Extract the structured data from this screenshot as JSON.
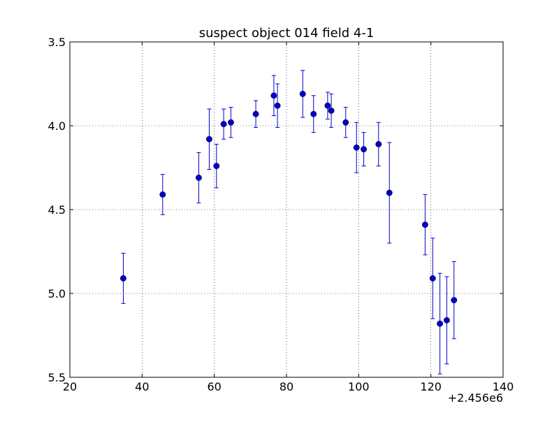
{
  "chart_data": {
    "type": "scatter",
    "title": "suspect object 014 field 4-1",
    "xlabel": "",
    "ylabel": "",
    "x_offset_label": "+2.456e6",
    "xlim": [
      20,
      140
    ],
    "ylim": [
      3.5,
      5.5
    ],
    "y_inverted": true,
    "grid": true,
    "x_ticks": [
      "20",
      "40",
      "60",
      "80",
      "100",
      "120",
      "140"
    ],
    "y_ticks": [
      "3.5",
      "4.0",
      "4.5",
      "5.0",
      "5.5"
    ],
    "marker_color": "#0000cc",
    "series": [
      {
        "points": [
          {
            "x": 34.8,
            "y": 4.91,
            "err": 0.15
          },
          {
            "x": 45.7,
            "y": 4.41,
            "err": 0.12
          },
          {
            "x": 55.7,
            "y": 4.31,
            "err": 0.15
          },
          {
            "x": 58.6,
            "y": 4.08,
            "err": 0.18
          },
          {
            "x": 60.6,
            "y": 4.24,
            "err": 0.13
          },
          {
            "x": 62.6,
            "y": 3.99,
            "err": 0.09
          },
          {
            "x": 64.6,
            "y": 3.98,
            "err": 0.09
          },
          {
            "x": 71.5,
            "y": 3.93,
            "err": 0.08
          },
          {
            "x": 76.5,
            "y": 3.82,
            "err": 0.12
          },
          {
            "x": 77.5,
            "y": 3.88,
            "err": 0.13
          },
          {
            "x": 84.5,
            "y": 3.81,
            "err": 0.14
          },
          {
            "x": 87.5,
            "y": 3.93,
            "err": 0.11
          },
          {
            "x": 91.4,
            "y": 3.88,
            "err": 0.08
          },
          {
            "x": 92.4,
            "y": 3.91,
            "err": 0.1
          },
          {
            "x": 96.4,
            "y": 3.98,
            "err": 0.09
          },
          {
            "x": 99.4,
            "y": 4.13,
            "err": 0.15
          },
          {
            "x": 101.4,
            "y": 4.14,
            "err": 0.1
          },
          {
            "x": 105.5,
            "y": 4.11,
            "err": 0.13
          },
          {
            "x": 108.5,
            "y": 4.4,
            "err": 0.3
          },
          {
            "x": 118.4,
            "y": 4.59,
            "err": 0.18
          },
          {
            "x": 120.5,
            "y": 4.91,
            "err": 0.24
          },
          {
            "x": 122.5,
            "y": 5.18,
            "err": 0.3
          },
          {
            "x": 124.4,
            "y": 5.16,
            "err": 0.26
          },
          {
            "x": 126.4,
            "y": 5.04,
            "err": 0.23
          }
        ]
      }
    ]
  }
}
